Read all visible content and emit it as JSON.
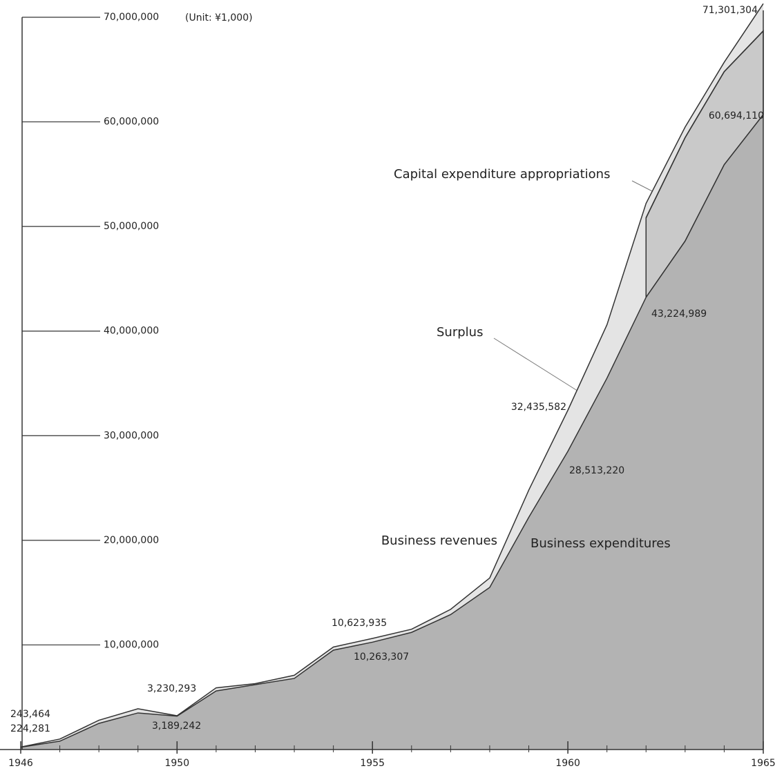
{
  "chart_data": {
    "type": "area",
    "unit_note": "(Unit: ¥1,000)",
    "x": [
      1946,
      1947,
      1948,
      1949,
      1950,
      1951,
      1952,
      1953,
      1954,
      1955,
      1956,
      1957,
      1958,
      1959,
      1960,
      1961,
      1962,
      1963,
      1964,
      1965
    ],
    "xlim": [
      1946,
      1965
    ],
    "xticks": [
      1946,
      1950,
      1955,
      1960,
      1965
    ],
    "ylim": [
      0,
      70000000
    ],
    "yticks": [
      {
        "value": 10000000,
        "label": "10,000,000"
      },
      {
        "value": 20000000,
        "label": "20,000,000"
      },
      {
        "value": 30000000,
        "label": "30,000,000"
      },
      {
        "value": 40000000,
        "label": "40,000,000"
      },
      {
        "value": 50000000,
        "label": "50,000,000"
      },
      {
        "value": 60000000,
        "label": "60,000,000"
      },
      {
        "value": 70000000,
        "label": "70,000,000"
      }
    ],
    "series": [
      {
        "name": "Business revenues",
        "color": "#e4e4e4",
        "values": [
          243464,
          1000000,
          2800000,
          3900000,
          3230293,
          5900000,
          6300000,
          7100000,
          9800000,
          10623935,
          11500000,
          13400000,
          16400000,
          24800000,
          32435582,
          40600000,
          52200000,
          59500000,
          65700000,
          71301304
        ],
        "value_labels": [
          "243,464",
          null,
          null,
          null,
          "3,230,293",
          null,
          null,
          null,
          null,
          "10,623,935",
          null,
          null,
          null,
          null,
          "32,435,582",
          null,
          null,
          null,
          null,
          "71,301,304"
        ]
      },
      {
        "name": "Business expenditures",
        "color": "#b3b3b3",
        "values": [
          224281,
          800000,
          2500000,
          3500000,
          3189242,
          5600000,
          6200000,
          6800000,
          9500000,
          10263307,
          11200000,
          12900000,
          15500000,
          22200000,
          28513220,
          35500000,
          43224989,
          48600000,
          55900000,
          60694110
        ],
        "value_labels": [
          "224,281",
          null,
          null,
          null,
          "3,189,242",
          null,
          null,
          null,
          null,
          "10,263,307",
          null,
          null,
          null,
          null,
          "28,513,220",
          null,
          "43,224,989",
          null,
          null,
          "60,694,110"
        ]
      },
      {
        "name": "Capital expenditure appropriations",
        "color": "#c9c9c9",
        "values": [
          null,
          null,
          null,
          null,
          null,
          null,
          null,
          null,
          null,
          null,
          null,
          null,
          null,
          null,
          null,
          null,
          7600000,
          9900000,
          8900000,
          8000000
        ]
      }
    ],
    "annotations": [
      "Surplus"
    ]
  }
}
